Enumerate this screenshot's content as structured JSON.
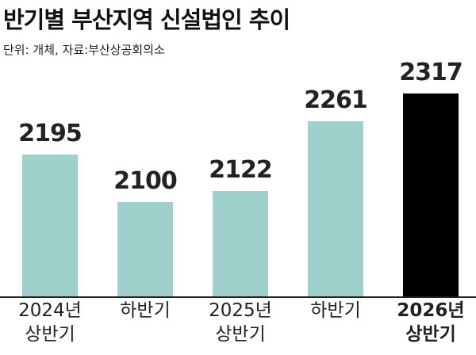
{
  "chart_data": {
    "type": "bar",
    "title": "반기별 부산지역 신설법인 추이",
    "subtitle": "단위: 개체, 자료:부산상공회의소",
    "categories": [
      "2024년\n상반기",
      "하반기",
      "2025년\n상반기",
      "하반기",
      "2026년\n상반기"
    ],
    "values": [
      2195,
      2100,
      2122,
      2261,
      2317
    ],
    "color": "#9fd0cb",
    "highlight": 4,
    "highlight_color": "#000000",
    "ylim": [
      1915,
      2345
    ]
  }
}
